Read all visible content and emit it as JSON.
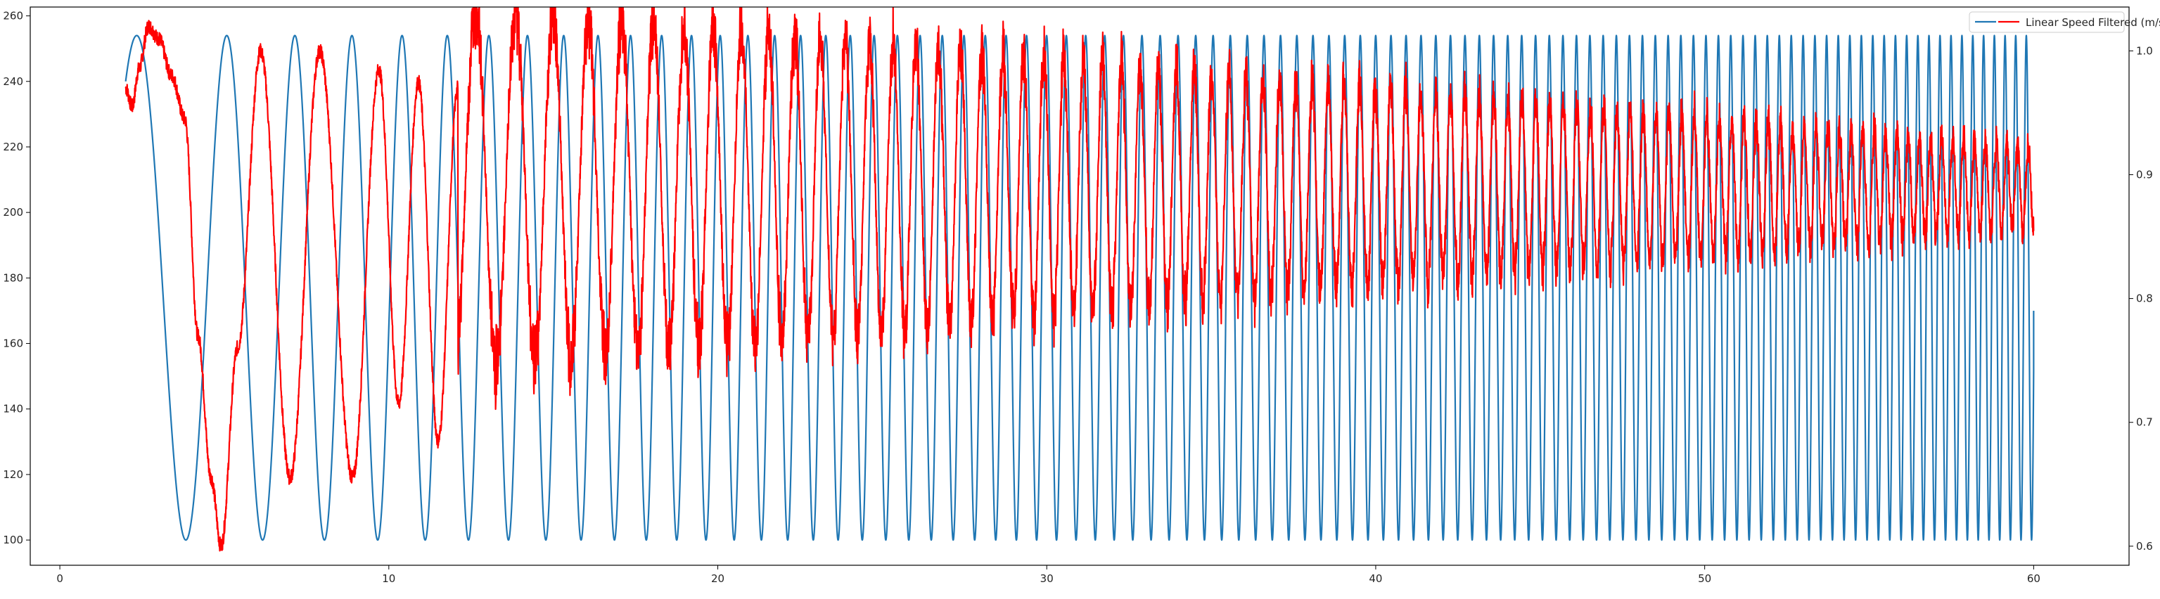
{
  "chart_data": {
    "type": "line",
    "title": "",
    "xlabel": "",
    "ylabel": "",
    "y2label": "",
    "xlim": [
      -0.9,
      62.9
    ],
    "ylim": [
      92.3,
      262.7
    ],
    "y2lim": [
      0.5846,
      1.0354
    ],
    "x_ticks": [
      "0",
      "10",
      "20",
      "30",
      "40",
      "50",
      "60"
    ],
    "y_ticks": [
      "100",
      "120",
      "140",
      "160",
      "180",
      "200",
      "220",
      "240",
      "260"
    ],
    "y2_ticks": [
      "0.6",
      "0.7",
      "0.8",
      "0.9",
      "1.0"
    ],
    "grid": false,
    "legend_position": "top-right",
    "series": [
      {
        "label": "",
        "axis": "left",
        "color": "#1f77b4",
        "style": "sinusoidal sweep, frequency increasing linearly with time",
        "x_start": 2.0,
        "x_end": 60.0,
        "y_min": 100,
        "y_max": 254,
        "period_at_start": 3.55,
        "period_at_end": 0.32,
        "end_value": 170,
        "sample_points": [
          {
            "x": 2.0,
            "y": 240
          },
          {
            "x": 2.7,
            "y": 254
          },
          {
            "x": 4.5,
            "y": 100
          },
          {
            "x": 5.8,
            "y": 254
          },
          {
            "x": 6.9,
            "y": 100
          },
          {
            "x": 7.8,
            "y": 254
          },
          {
            "x": 8.6,
            "y": 100
          },
          {
            "x": 9.4,
            "y": 254
          },
          {
            "x": 60.0,
            "y": 170
          }
        ]
      },
      {
        "label": "Linear Speed Filtered (m/s)",
        "axis": "right",
        "color": "#ff0000",
        "style": "noisy lagged oscillation, amplitude decaying over time",
        "x_start": 2.0,
        "x_end": 60.0,
        "baseline_end": 0.89,
        "sample_points": [
          {
            "x": 2.0,
            "y": 0.97
          },
          {
            "x": 2.2,
            "y": 0.955
          },
          {
            "x": 2.4,
            "y": 0.985
          },
          {
            "x": 2.7,
            "y": 1.02
          },
          {
            "x": 3.0,
            "y": 1.01
          },
          {
            "x": 3.4,
            "y": 0.98
          },
          {
            "x": 3.8,
            "y": 0.945
          },
          {
            "x": 4.2,
            "y": 0.77
          },
          {
            "x": 4.6,
            "y": 0.655
          },
          {
            "x": 4.9,
            "y": 0.6
          },
          {
            "x": 5.4,
            "y": 0.76
          },
          {
            "x": 6.1,
            "y": 1.0
          },
          {
            "x": 7.0,
            "y": 0.655
          },
          {
            "x": 7.9,
            "y": 1.0
          },
          {
            "x": 8.9,
            "y": 0.655
          },
          {
            "x": 9.7,
            "y": 0.985
          },
          {
            "x": 10.3,
            "y": 0.715
          },
          {
            "x": 10.9,
            "y": 0.975
          },
          {
            "x": 11.5,
            "y": 0.685
          },
          {
            "x": 12.1,
            "y": 0.97
          },
          {
            "x": 20.0,
            "y": 0.84
          },
          {
            "x": 30.0,
            "y": 0.91
          },
          {
            "x": 40.0,
            "y": 0.89
          },
          {
            "x": 50.0,
            "y": 0.885
          },
          {
            "x": 60.0,
            "y": 0.91
          }
        ]
      }
    ]
  }
}
